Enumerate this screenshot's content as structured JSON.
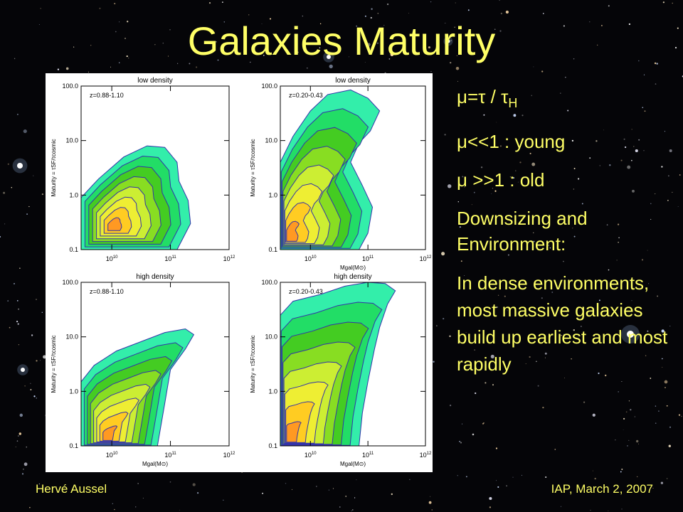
{
  "slide": {
    "title": "Galaxies Maturity",
    "bullets": [
      {
        "prefix": "μ=τ / τ",
        "sub": "H"
      },
      {
        "text": "μ<<1 : young"
      },
      {
        "text": "μ >>1 : old"
      },
      {
        "text": "Downsizing and Environment:"
      },
      {
        "text": "In dense environments, most massive galaxies build up earliest and most rapidly"
      }
    ],
    "footer_left": "Hervé Aussel",
    "footer_right": "IAP, March 2, 2007"
  },
  "colors": {
    "title": "#ffff66",
    "contour_line": "#3333aa",
    "levels": [
      "#33eeaa",
      "#22dd66",
      "#44cc22",
      "#88dd22",
      "#ccee33",
      "#eeee33",
      "#ffcc22",
      "#ff9922"
    ]
  },
  "chart_data": [
    {
      "type": "contour",
      "title": "low density",
      "annotation": "z=0.88-1.10",
      "ylabel": "Maturity = τSF/τcosmic",
      "xlabel": "",
      "xscale": "log",
      "yscale": "log",
      "xlim": [
        3000000000.0,
        1000000000000.0
      ],
      "ylim": [
        0.1,
        100
      ],
      "xticks": [
        "10^10",
        "10^11",
        "10^12"
      ],
      "yticks": [
        "0.1",
        "1.0",
        "10.0",
        "100.0"
      ],
      "peak": {
        "x": 10000000000.0,
        "y": 0.25
      },
      "outer_contour": [
        [
          3000000000.0,
          0.1
        ],
        [
          3000000000.0,
          0.9
        ],
        [
          6000000000.0,
          2.0
        ],
        [
          16000000000.0,
          5.0
        ],
        [
          40000000000.0,
          8.0
        ],
        [
          80000000000.0,
          7.5
        ],
        [
          130000000000.0,
          4.0
        ],
        [
          140000000000.0,
          1.8
        ],
        [
          200000000000.0,
          0.8
        ],
        [
          220000000000.0,
          0.3
        ],
        [
          130000000000.0,
          0.1
        ]
      ]
    },
    {
      "type": "contour",
      "title": "low density",
      "annotation": "z=0.20-0.43",
      "ylabel": "Maturity = τSF/τcosmic",
      "xlabel": "Mgal(M⊙)",
      "xscale": "log",
      "yscale": "log",
      "xlim": [
        3000000000.0,
        1000000000000.0
      ],
      "ylim": [
        0.1,
        100
      ],
      "xticks": [
        "10^10",
        "10^11",
        "10^12"
      ],
      "yticks": [
        "0.1",
        "1.0",
        "10.0",
        "100.0"
      ],
      "peak": {
        "x": 4000000000.0,
        "y": 0.15
      },
      "outer_contour": [
        [
          3000000000.0,
          0.1
        ],
        [
          3000000000.0,
          4.0
        ],
        [
          5000000000.0,
          12.0
        ],
        [
          10000000000.0,
          35.0
        ],
        [
          20000000000.0,
          70.0
        ],
        [
          50000000000.0,
          85.0
        ],
        [
          100000000000.0,
          60.0
        ],
        [
          160000000000.0,
          35.0
        ],
        [
          110000000000.0,
          15.0
        ],
        [
          70000000000.0,
          9.0
        ],
        [
          50000000000.0,
          4.0
        ],
        [
          80000000000.0,
          1.5
        ],
        [
          120000000000.0,
          0.6
        ],
        [
          100000000000.0,
          0.2
        ],
        [
          70000000000.0,
          0.1
        ]
      ]
    },
    {
      "type": "contour",
      "title": "high density",
      "annotation": "z=0.88-1.10",
      "ylabel": "Maturity = τSF/τcosmic",
      "xlabel": "Mgal(M⊙)",
      "xscale": "log",
      "yscale": "log",
      "xlim": [
        3000000000.0,
        1000000000000.0
      ],
      "ylim": [
        0.1,
        100
      ],
      "xticks": [
        "10^10",
        "10^11",
        "10^12"
      ],
      "yticks": [
        "0.1",
        "1.0",
        "10.0",
        "100.0"
      ],
      "peak": {
        "x": 8000000000.0,
        "y": 0.13
      },
      "outer_contour": [
        [
          3000000000.0,
          0.1
        ],
        [
          3000000000.0,
          1.5
        ],
        [
          5000000000.0,
          3.0
        ],
        [
          12000000000.0,
          5.5
        ],
        [
          30000000000.0,
          8.0
        ],
        [
          80000000000.0,
          12.0
        ],
        [
          180000000000.0,
          14.0
        ],
        [
          250000000000.0,
          11.0
        ],
        [
          180000000000.0,
          6.0
        ],
        [
          100000000000.0,
          2.5
        ],
        [
          80000000000.0,
          0.6
        ],
        [
          60000000000.0,
          0.1
        ]
      ]
    },
    {
      "type": "contour",
      "title": "high density",
      "annotation": "z=0.20-0.43",
      "ylabel": "Maturity = τSF/τcosmic",
      "xlabel": "Mgal(M⊙)",
      "xscale": "log",
      "yscale": "log",
      "xlim": [
        3000000000.0,
        1000000000000.0
      ],
      "ylim": [
        0.1,
        100
      ],
      "xticks": [
        "10^10",
        "10^11",
        "10^12"
      ],
      "yticks": [
        "0.1",
        "1.0",
        "10.0",
        "100.0"
      ],
      "peak": {
        "x": 4000000000.0,
        "y": 0.12
      },
      "outer_contour": [
        [
          3000000000.0,
          0.1
        ],
        [
          3000000000.0,
          25.0
        ],
        [
          5000000000.0,
          45.0
        ],
        [
          15000000000.0,
          60.0
        ],
        [
          40000000000.0,
          85.0
        ],
        [
          100000000000.0,
          100.0
        ],
        [
          200000000000.0,
          95.0
        ],
        [
          300000000000.0,
          70.0
        ],
        [
          220000000000.0,
          40.0
        ],
        [
          160000000000.0,
          15.0
        ],
        [
          130000000000.0,
          6.0
        ],
        [
          100000000000.0,
          1.5
        ],
        [
          80000000000.0,
          0.4
        ],
        [
          70000000000.0,
          0.1
        ]
      ]
    }
  ]
}
